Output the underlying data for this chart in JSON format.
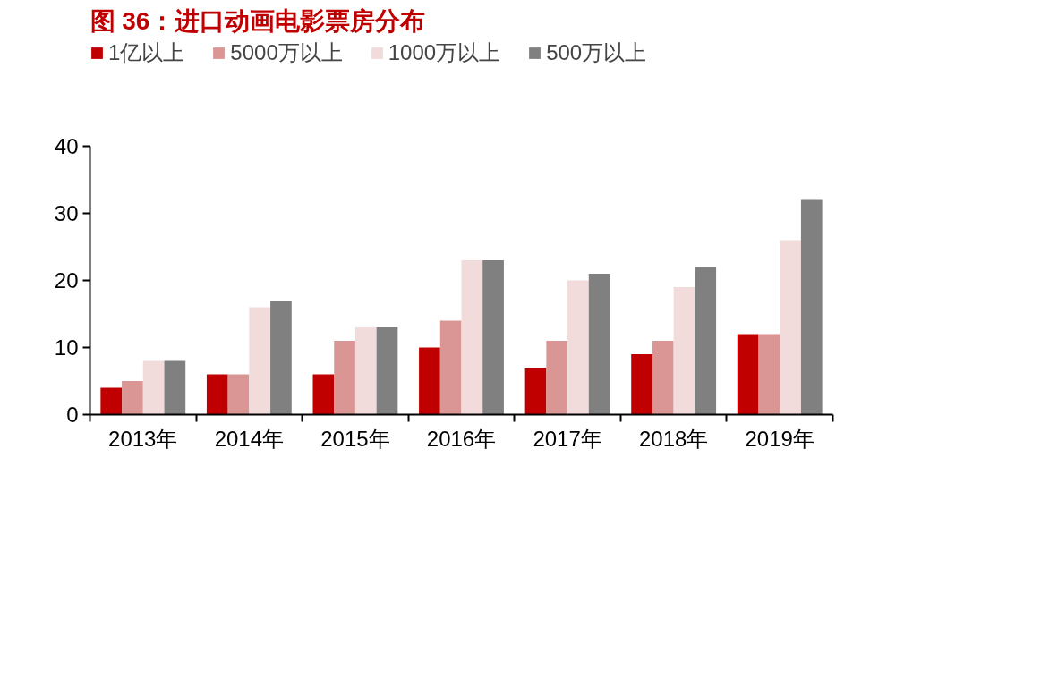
{
  "chart_data": {
    "type": "bar",
    "title": "图 36：进口动画电影票房分布",
    "categories": [
      "2013年",
      "2014年",
      "2015年",
      "2016年",
      "2017年",
      "2018年",
      "2019年"
    ],
    "series": [
      {
        "name": "1亿以上",
        "color": "#c00000",
        "values": [
          4,
          6,
          6,
          10,
          7,
          9,
          12
        ]
      },
      {
        "name": "5000万以上",
        "color": "#d99694",
        "values": [
          5,
          6,
          11,
          14,
          11,
          11,
          12
        ]
      },
      {
        "name": "1000万以上",
        "color": "#f2dcdb",
        "values": [
          8,
          16,
          13,
          23,
          20,
          19,
          26
        ]
      },
      {
        "name": "500万以上",
        "color": "#808080",
        "values": [
          8,
          17,
          13,
          23,
          21,
          22,
          32
        ]
      }
    ],
    "ylim": [
      0,
      40
    ],
    "yticks": [
      0,
      10,
      20,
      30,
      40
    ],
    "grid": false,
    "legend": "top"
  }
}
